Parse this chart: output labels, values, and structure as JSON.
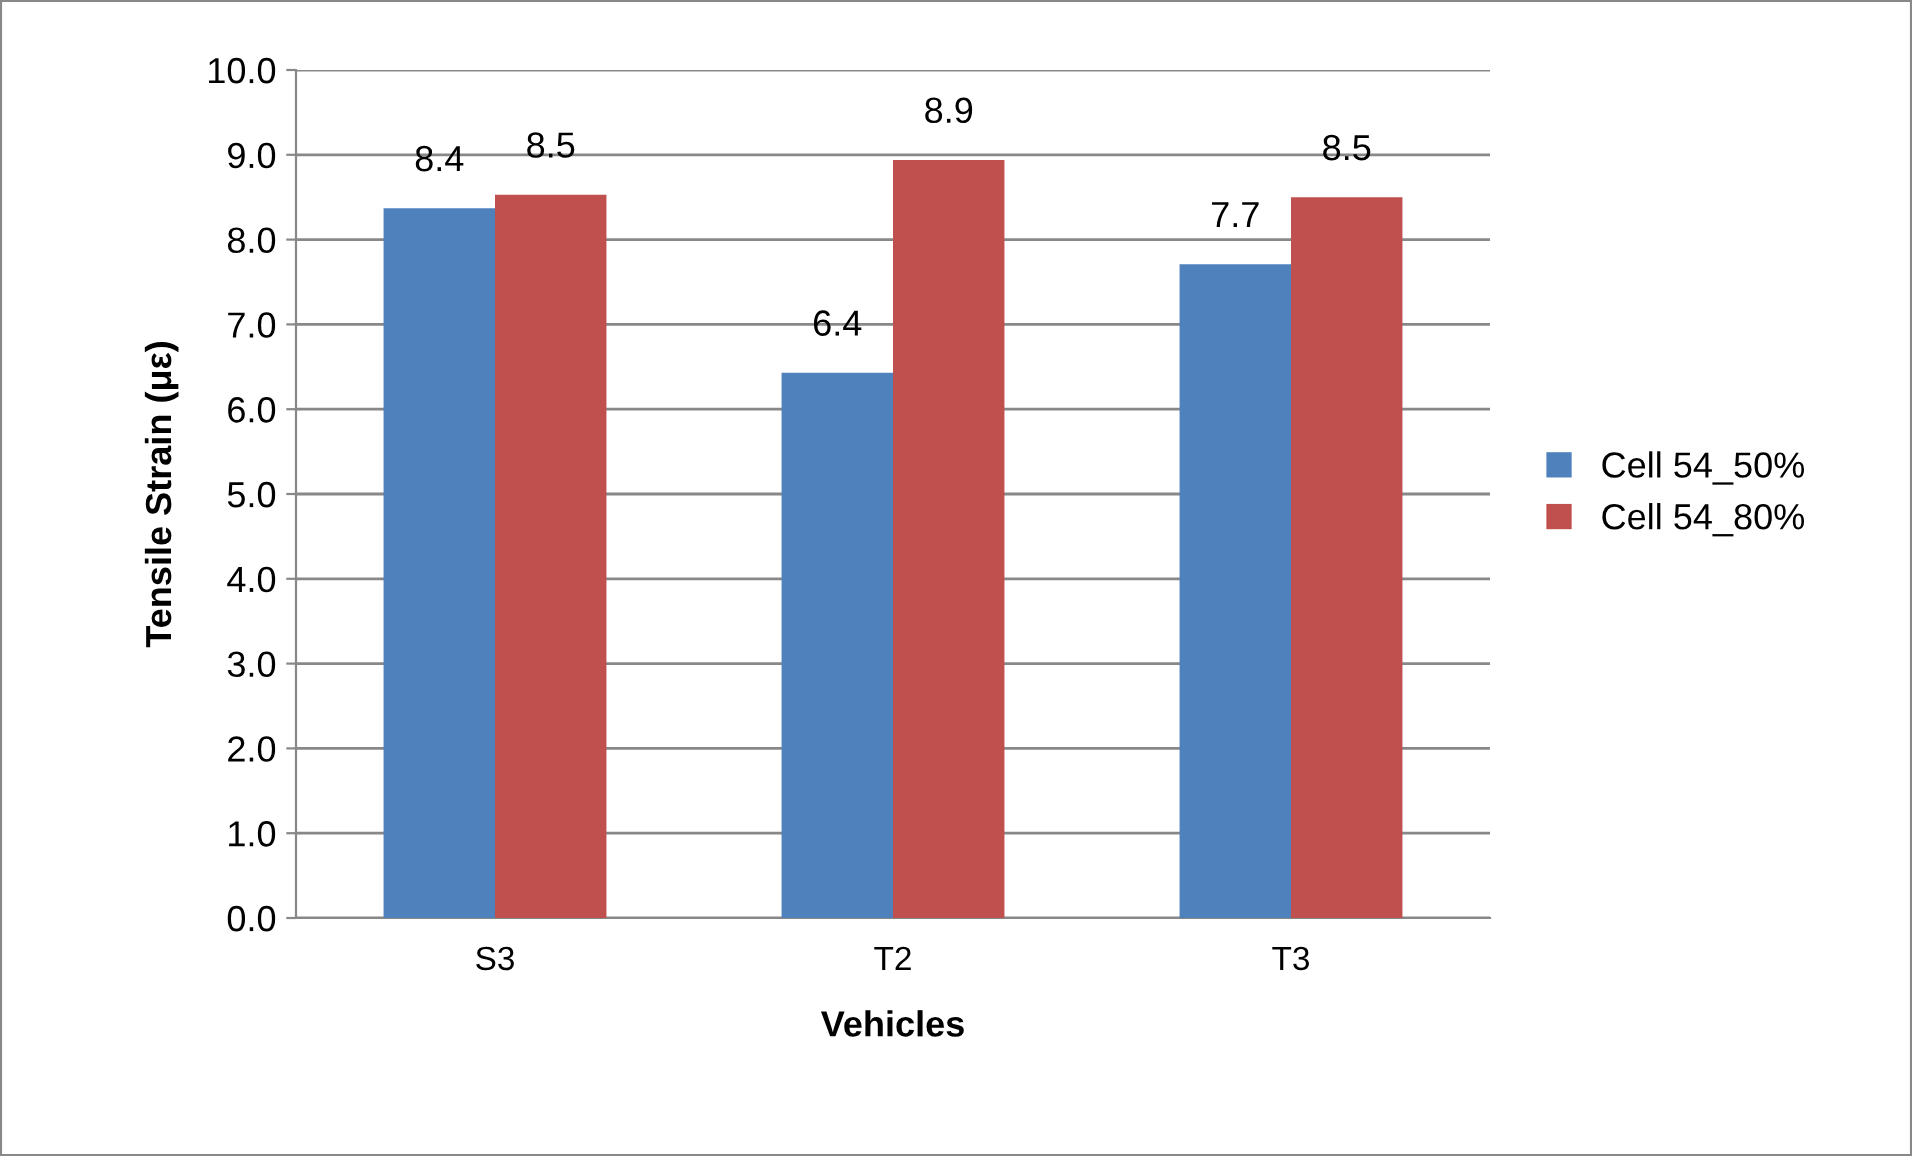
{
  "chart_data": {
    "type": "bar",
    "xlabel": "Vehicles",
    "ylabel": "Tensile Strain (με)",
    "categories": [
      "S3",
      "T2",
      "T3"
    ],
    "series": [
      {
        "name": "Cell 54_50%",
        "color": "#4f81bd",
        "values": [
          8.37,
          6.43,
          7.71
        ],
        "value_labels": [
          "8.4",
          "6.4",
          "7.7"
        ]
      },
      {
        "name": "Cell 54_80%",
        "color": "#c0504d",
        "values": [
          8.53,
          8.94,
          8.5
        ],
        "value_labels": [
          "8.5",
          "8.9",
          "8.5"
        ]
      }
    ],
    "ylim": [
      0,
      10
    ],
    "yticks": [
      {
        "value": 0,
        "label": "0.0"
      },
      {
        "value": 1,
        "label": "1.0"
      },
      {
        "value": 2,
        "label": "2.0"
      },
      {
        "value": 3,
        "label": "3.0"
      },
      {
        "value": 4,
        "label": "4.0"
      },
      {
        "value": 5,
        "label": "5.0"
      },
      {
        "value": 6,
        "label": "6.0"
      },
      {
        "value": 7,
        "label": "7.0"
      },
      {
        "value": 8,
        "label": "8.0"
      },
      {
        "value": 9,
        "label": "9.0"
      },
      {
        "value": 10,
        "label": "10.0"
      }
    ],
    "grid": "y",
    "legend": "right"
  }
}
